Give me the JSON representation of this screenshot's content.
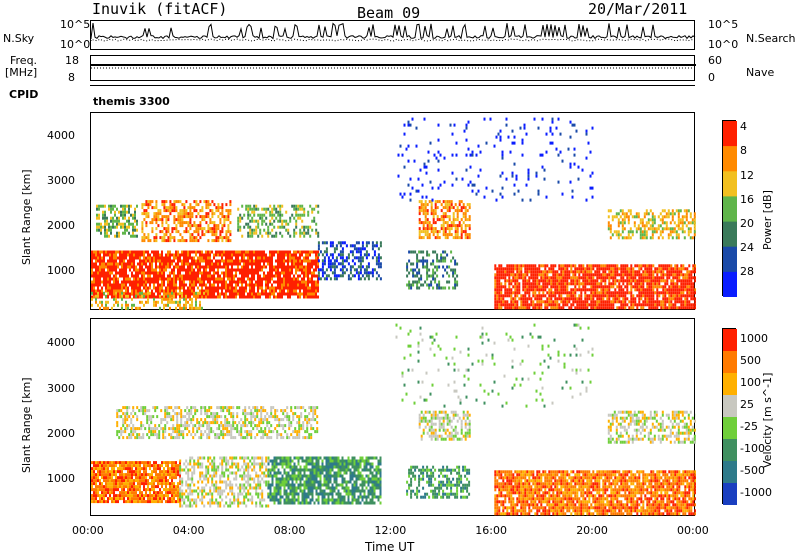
{
  "header": {
    "station": "Inuvik (fitACF)",
    "beam": "Beam 09",
    "date": "20/Mar/2011"
  },
  "nsky_panel": {
    "left_label": "N.Sky",
    "left_ticks": [
      "10^5",
      "10^0"
    ],
    "right_label": "N.Search",
    "right_ticks": [
      "10^5",
      "10^0"
    ]
  },
  "freq_panel": {
    "left_label_line1": "Freq.",
    "left_label_line2": "[MHz]",
    "left_ticks": [
      "18",
      "8"
    ],
    "right_label": "Nave",
    "right_ticks": [
      "60",
      "0"
    ]
  },
  "cpid_panel": {
    "label": "CPID",
    "program": "themis 3300"
  },
  "time_axis": {
    "label": "Time UT",
    "ticks": [
      "00:00",
      "04:00",
      "08:00",
      "12:00",
      "16:00",
      "20:00",
      "00:00"
    ]
  },
  "chart_data": [
    {
      "type": "heatmap",
      "name": "power",
      "ylabel": "Slant Range [km]",
      "yticks": [
        "1000",
        "2000",
        "3000",
        "4000"
      ],
      "ylim": [
        180,
        4500
      ],
      "xlim": [
        0,
        24
      ],
      "colorbar_label": "Power [dB]",
      "colorbar_ticks": [
        "4",
        "8",
        "12",
        "16",
        "20",
        "24",
        "28"
      ],
      "colorbar_colors": [
        "#0a1dff",
        "#1a4aa8",
        "#3a7a5a",
        "#5fb54a",
        "#f2c020",
        "#ff8a00",
        "#ff2000"
      ],
      "regions": [
        {
          "t0": 0.0,
          "t1": 9.0,
          "r0": 500,
          "r1": 1500,
          "level": 6,
          "density": 0.85
        },
        {
          "t0": 0.0,
          "t1": 4.5,
          "r0": 250,
          "r1": 600,
          "level": 4,
          "density": 0.4
        },
        {
          "t0": 2.0,
          "t1": 5.5,
          "r0": 1700,
          "r1": 2600,
          "level": 5,
          "density": 0.55
        },
        {
          "t0": 0.2,
          "t1": 1.8,
          "r0": 1800,
          "r1": 2500,
          "level": 3,
          "density": 0.6
        },
        {
          "t0": 5.8,
          "t1": 9.0,
          "r0": 1800,
          "r1": 2500,
          "level": 3,
          "density": 0.45
        },
        {
          "t0": 9.0,
          "t1": 11.5,
          "r0": 900,
          "r1": 1700,
          "level": 1,
          "density": 0.5
        },
        {
          "t0": 13.0,
          "t1": 15.0,
          "r0": 1800,
          "r1": 2600,
          "level": 5,
          "density": 0.6
        },
        {
          "t0": 12.5,
          "t1": 14.5,
          "r0": 700,
          "r1": 1500,
          "level": 2,
          "density": 0.45
        },
        {
          "t0": 16.0,
          "t1": 24.0,
          "r0": 250,
          "r1": 1200,
          "level": 6,
          "density": 0.85
        },
        {
          "t0": 20.5,
          "t1": 24.0,
          "r0": 1800,
          "r1": 2400,
          "level": 4,
          "density": 0.5
        },
        {
          "t0": 12.0,
          "t1": 20.0,
          "r0": 2600,
          "r1": 4400,
          "level": 0,
          "density": 0.06
        }
      ]
    },
    {
      "type": "heatmap",
      "name": "velocity",
      "ylabel": "Slant Range [km]",
      "yticks": [
        "1000",
        "2000",
        "3000",
        "4000"
      ],
      "ylim": [
        180,
        4500
      ],
      "xlim": [
        0,
        24
      ],
      "colorbar_label": "Velocity [m s^-1]",
      "colorbar_ticks": [
        "1000",
        "500",
        "100",
        "25",
        "-25",
        "-100",
        "-500",
        "-1000"
      ],
      "colorbar_colors": [
        "#1a3fc0",
        "#2e7a8a",
        "#3f9060",
        "#6fcf3a",
        "#c8c8c0",
        "#ffb000",
        "#ff7a00",
        "#ff2000"
      ],
      "regions": [
        {
          "t0": 0.0,
          "t1": 3.5,
          "r0": 500,
          "r1": 1400,
          "level": 6,
          "density": 0.85
        },
        {
          "t0": 3.5,
          "t1": 7.0,
          "r0": 400,
          "r1": 1500,
          "level": 4,
          "density": 0.5
        },
        {
          "t0": 7.0,
          "t1": 11.5,
          "r0": 500,
          "r1": 1500,
          "level": 2,
          "density": 0.75
        },
        {
          "t0": 1.0,
          "t1": 9.0,
          "r0": 1900,
          "r1": 2600,
          "level": 4,
          "density": 0.55
        },
        {
          "t0": 12.5,
          "t1": 15.0,
          "r0": 600,
          "r1": 1300,
          "level": 2,
          "density": 0.55
        },
        {
          "t0": 13.0,
          "t1": 15.0,
          "r0": 1900,
          "r1": 2500,
          "level": 4,
          "density": 0.5
        },
        {
          "t0": 16.0,
          "t1": 24.0,
          "r0": 250,
          "r1": 1200,
          "level": 6,
          "density": 0.85
        },
        {
          "t0": 20.5,
          "t1": 24.0,
          "r0": 1800,
          "r1": 2500,
          "level": 4,
          "density": 0.5
        },
        {
          "t0": 12.0,
          "t1": 20.0,
          "r0": 2600,
          "r1": 4400,
          "level": 3,
          "density": 0.06
        }
      ]
    }
  ]
}
